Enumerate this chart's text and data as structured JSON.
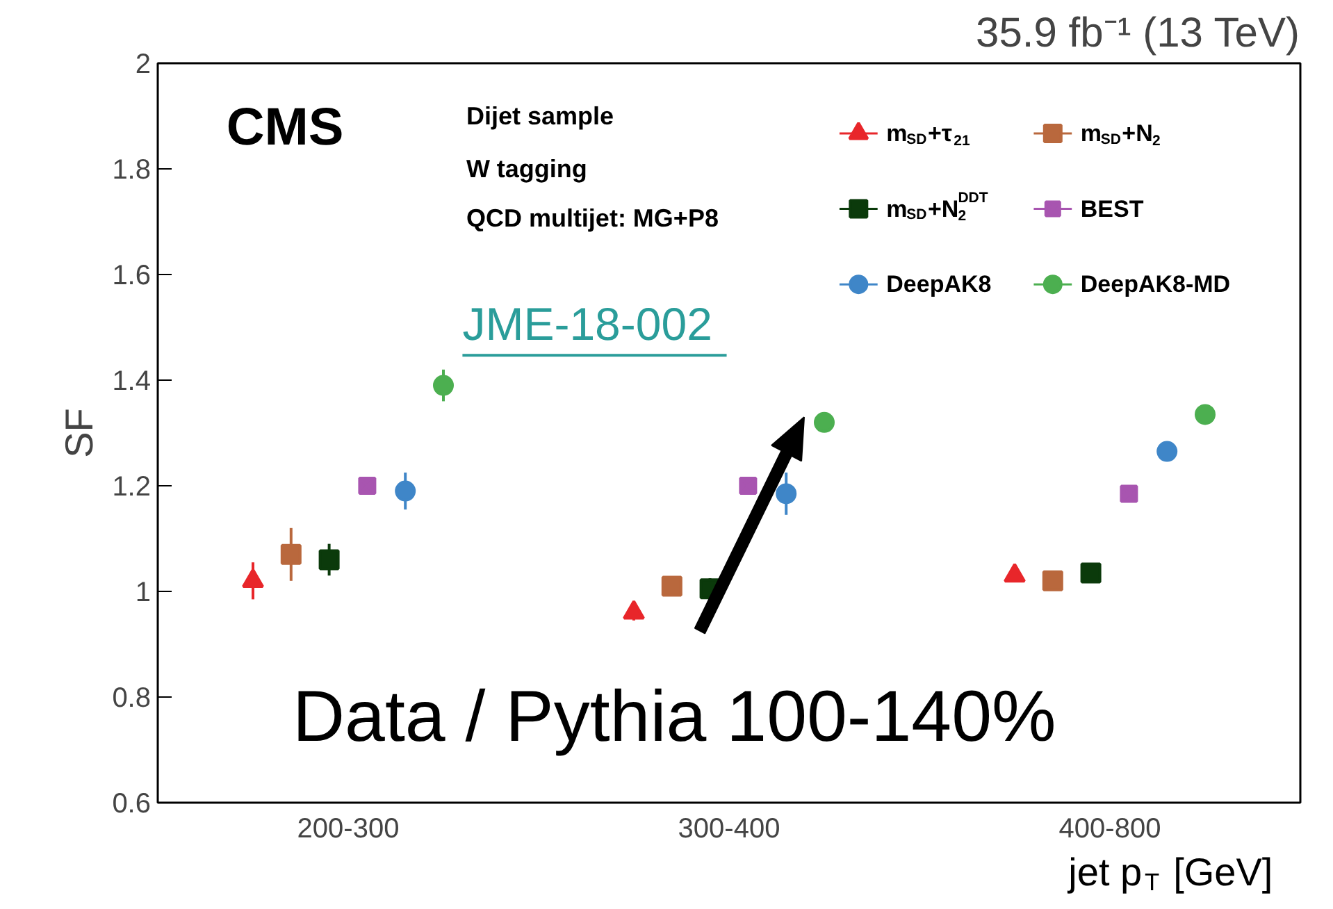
{
  "chart_data": {
    "type": "scatter",
    "title": "35.9 fb⁻¹ (13 TeV)",
    "xlabel": "jet p$_{T}$ [GeV]",
    "ylabel": "SF",
    "categories": [
      "200-300",
      "300-400",
      "400-800"
    ],
    "ylim": [
      0.6,
      2
    ],
    "yticks": [
      0.6,
      0.8,
      1,
      1.2,
      1.4,
      1.6,
      1.8,
      2
    ],
    "grid": false,
    "legend": "top right",
    "series": [
      {
        "name": "m$_{SD}$+τ$_{21}$",
        "color": "#e8262a",
        "marker": "triangle",
        "values": [
          1.02,
          0.96,
          1.03
        ],
        "errors": [
          0.035,
          0.015,
          null
        ]
      },
      {
        "name": "m$_{SD}$+N$_{2}$",
        "color": "#b9683d",
        "marker": "square",
        "values": [
          1.07,
          1.01,
          1.02
        ],
        "errors": [
          0.05,
          null,
          null
        ]
      },
      {
        "name": "m$_{SD}$+N$_{2}$$^{DDT}$",
        "color": "#0b3a0b",
        "marker": "square",
        "values": [
          1.06,
          1.005,
          1.035
        ],
        "errors": [
          0.03,
          0.02,
          null
        ]
      },
      {
        "name": "BEST",
        "color": "#a855b0",
        "marker": "cross",
        "values": [
          1.2,
          1.2,
          1.185
        ],
        "errors": [
          0.012,
          null,
          null
        ]
      },
      {
        "name": "DeepAK8",
        "color": "#3f86c8",
        "marker": "circle",
        "values": [
          1.19,
          1.185,
          1.265
        ],
        "errors": [
          0.035,
          0.04,
          null
        ]
      },
      {
        "name": "DeepAK8-MD",
        "color": "#4caf50",
        "marker": "circle",
        "values": [
          1.39,
          1.32,
          1.335
        ],
        "errors": [
          0.03,
          null,
          null
        ]
      }
    ],
    "annotations": [
      "CMS",
      "Dijet sample",
      "W tagging",
      "QCD multijet: MG+P8",
      "JME-18-002",
      "Data / Pythia 100-140%"
    ]
  }
}
